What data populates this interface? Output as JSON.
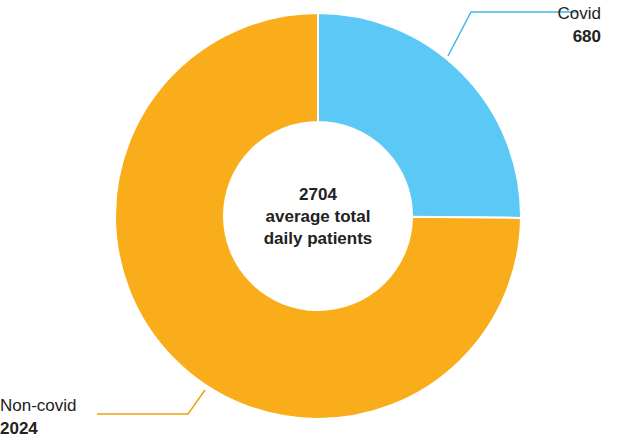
{
  "chart_data": {
    "type": "donut",
    "categories": [
      "Covid",
      "Non-covid"
    ],
    "values": [
      680,
      2024
    ],
    "colors": [
      "#5bc8f5",
      "#f9ad1b"
    ],
    "data_labels": true,
    "center_value": 2704,
    "center_text": "average total daily patients"
  }
}
